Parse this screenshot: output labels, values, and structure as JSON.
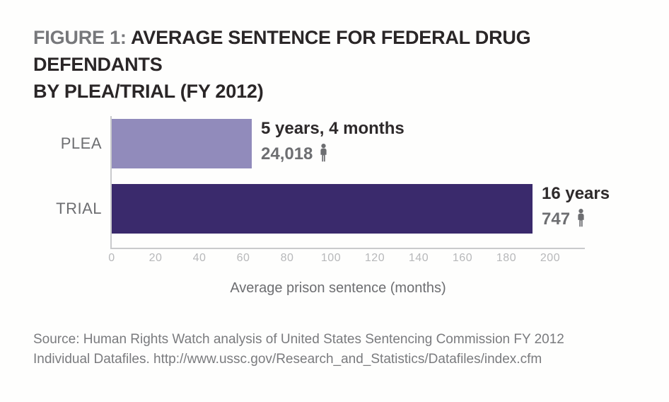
{
  "title": {
    "prefix": "FIGURE 1: ",
    "line1": "AVERAGE SENTENCE FOR FEDERAL DRUG DEFENDANTS",
    "line2": "BY PLEA/TRIAL (FY 2012)"
  },
  "chart_data": {
    "type": "bar",
    "orientation": "horizontal",
    "title": "FIGURE 1: AVERAGE SENTENCE FOR FEDERAL DRUG DEFENDANTS BY PLEA/TRIAL (FY 2012)",
    "categories": [
      "PLEA",
      "TRIAL"
    ],
    "values": [
      64,
      192
    ],
    "value_unit": "months",
    "xlabel": "Average prison sentence (months)",
    "ylabel": "",
    "xlim": [
      0,
      216
    ],
    "x_ticks": [
      0,
      20,
      40,
      60,
      80,
      100,
      120,
      140,
      160,
      180,
      200
    ],
    "grid": false,
    "legend": "none",
    "bars": [
      {
        "category": "PLEA",
        "months": 64,
        "sentence_label": "5 years, 4 months",
        "defendant_count": "24,018",
        "color": "#918BBB"
      },
      {
        "category": "TRIAL",
        "months": 192,
        "sentence_label": "16 years",
        "defendant_count": "747",
        "color": "#3A2A6C"
      }
    ]
  },
  "source": {
    "line1": "Source: Human Rights Watch analysis of United States Sentencing Commission FY 2012",
    "line2": "Individual Datafiles. http://www.ussc.gov/Research_and_Statistics/Datafiles/index.cfm"
  },
  "colors": {
    "background": "#fefefd",
    "title_prefix": "#77787b",
    "title_text": "#2a2627",
    "bar_plea": "#918BBB",
    "bar_trial": "#3A2A6C",
    "axis_line": "#c9cacc",
    "tick_label": "#b7b8ba",
    "category_label": "#6d6e71",
    "sentence_label": "#2e2a2b",
    "count_label": "#6d6e71",
    "xlabel": "#6d6e71",
    "source_text": "#7a7b7e"
  }
}
